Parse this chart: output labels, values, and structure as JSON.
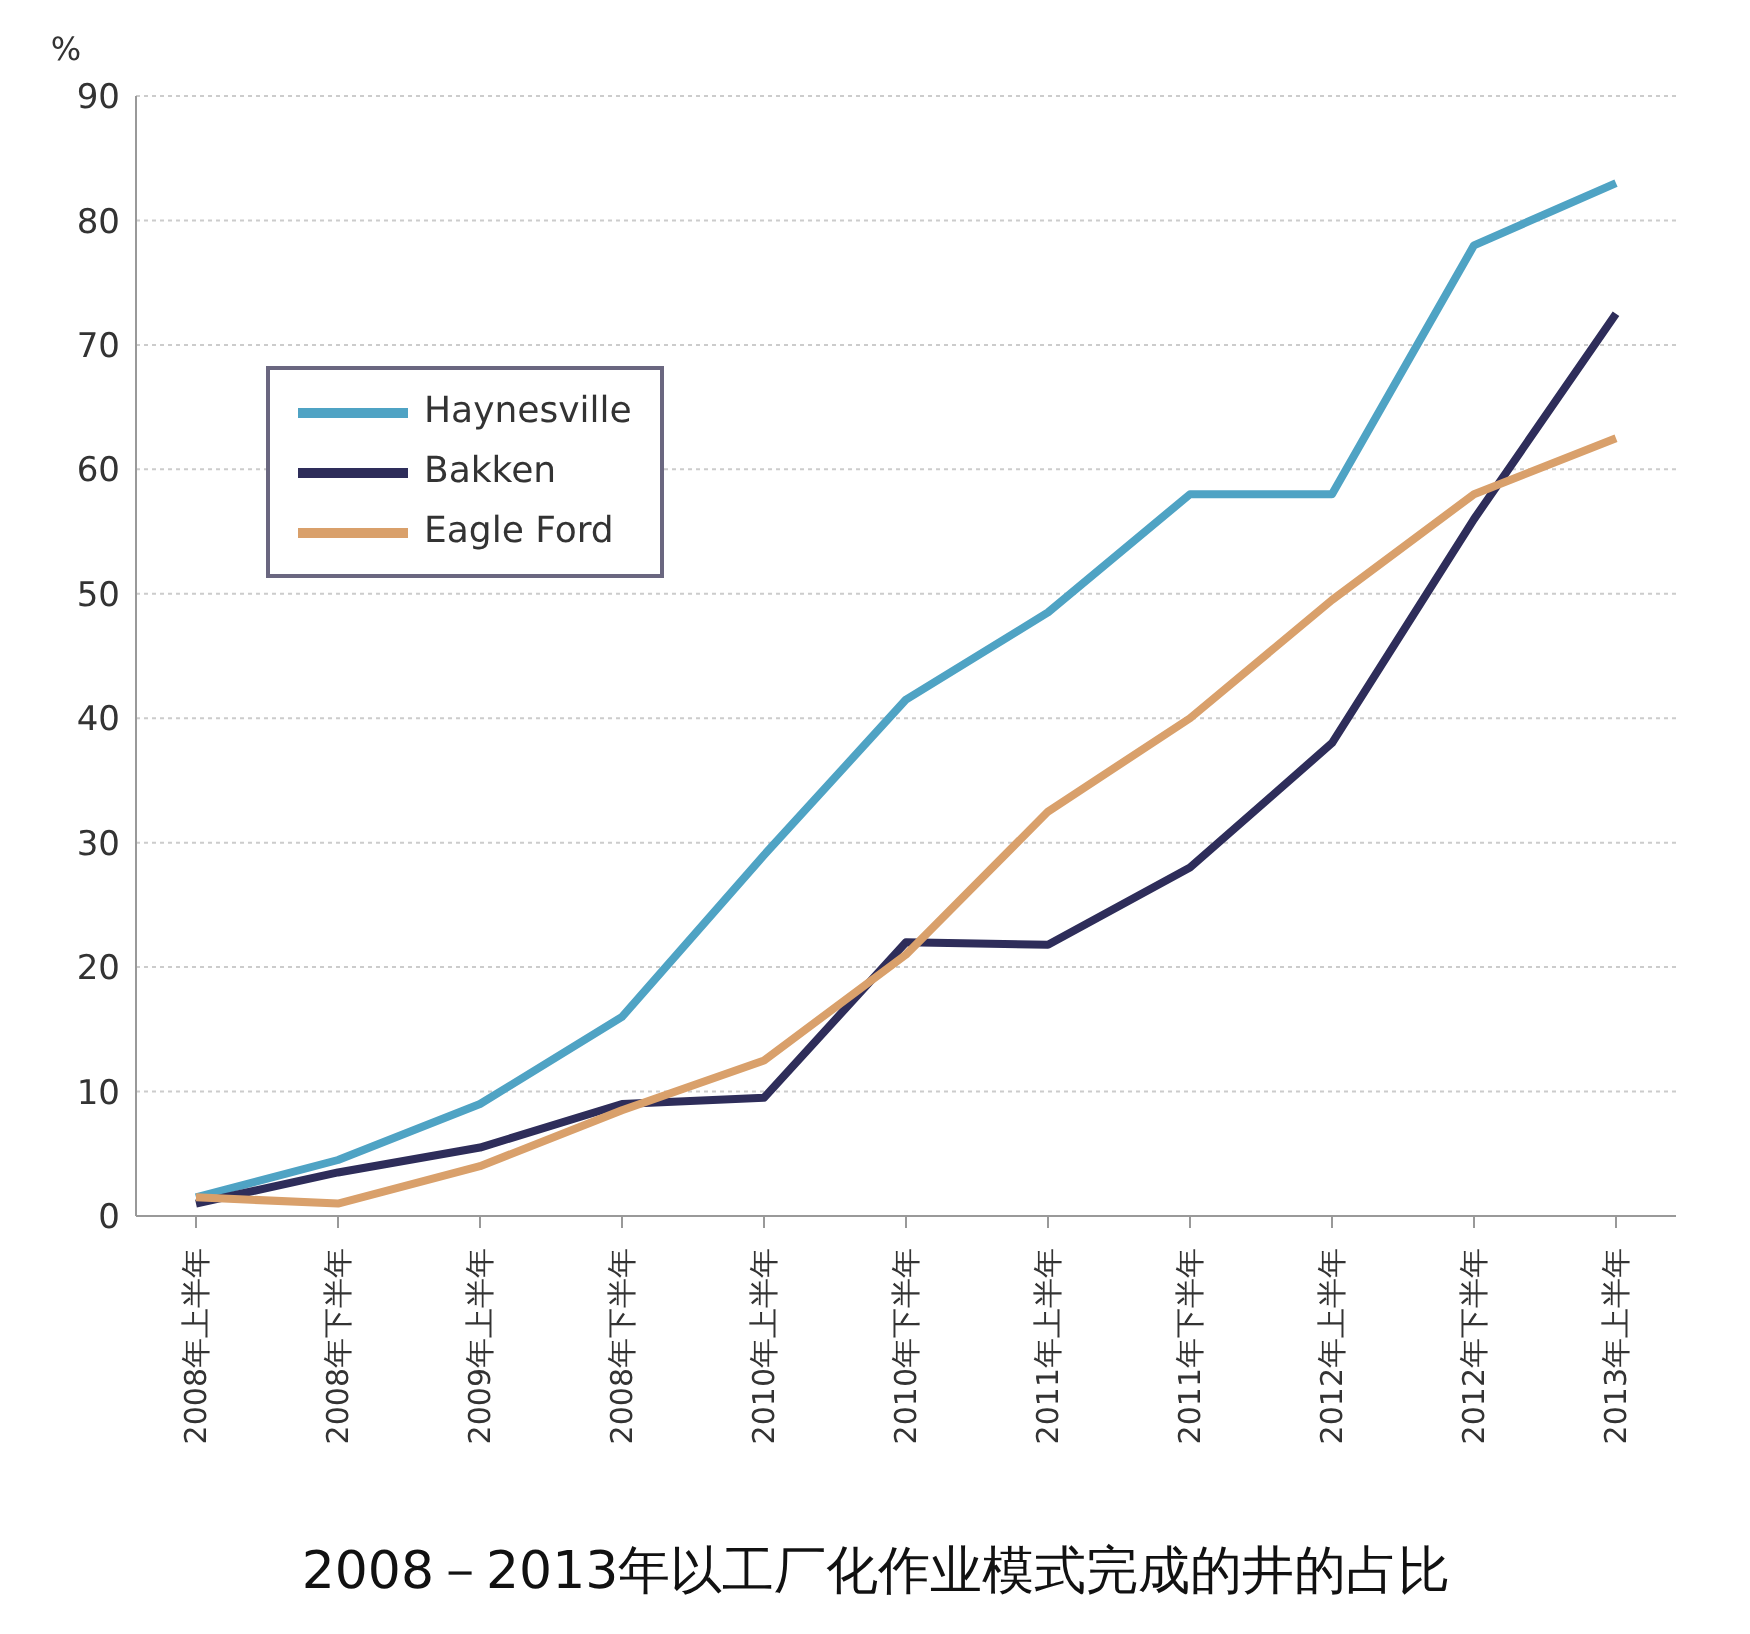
{
  "chart_data": {
    "type": "line",
    "title": "2008－2013年以工厂化作业模式完成的井的占比",
    "ylabel": "%",
    "categories": [
      "2008年上半年",
      "2008年下半年",
      "2009年上半年",
      "2008年下半年",
      "2010年上半年",
      "2010年下半年",
      "2011年上半年",
      "2011年下半年",
      "2012年上半年",
      "2012年下半年",
      "2013年上半年"
    ],
    "series": [
      {
        "name": "Haynesville",
        "color": "#4fa3c4",
        "values": [
          1.5,
          4.5,
          9,
          16,
          29,
          41.5,
          48.5,
          58,
          58,
          78,
          83
        ]
      },
      {
        "name": "Bakken",
        "color": "#2e2d5a",
        "values": [
          1,
          3.5,
          5.5,
          9,
          9.5,
          22,
          21.8,
          28,
          38,
          56,
          72.5
        ]
      },
      {
        "name": "Eagle Ford",
        "color": "#d9a06b",
        "values": [
          1.5,
          1,
          4,
          8.5,
          12.5,
          21,
          32.5,
          40,
          49.5,
          58,
          62.5
        ]
      }
    ],
    "ylim": [
      0,
      90
    ],
    "yticks": [
      0,
      10,
      20,
      30,
      40,
      50,
      60,
      70,
      80,
      90
    ],
    "grid": "y",
    "legend": "top left",
    "marker": "none",
    "line_style": "solid"
  }
}
